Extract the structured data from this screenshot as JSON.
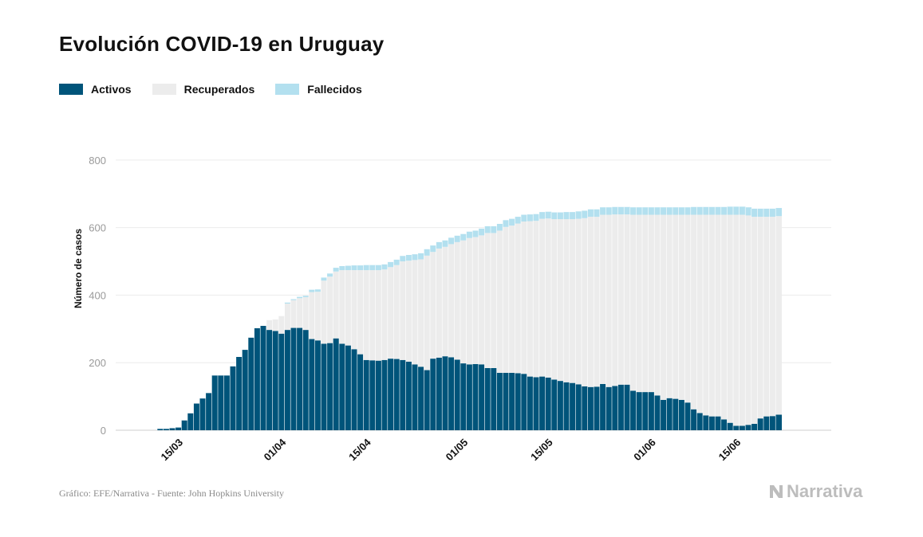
{
  "chart_data": {
    "type": "bar",
    "stacked": true,
    "title": "Evolución COVID-19 en Uruguay",
    "ylabel": "Número de casos",
    "xlabel": "",
    "ylim": [
      0,
      920
    ],
    "yticks": [
      0,
      200,
      400,
      600,
      800
    ],
    "grid": true,
    "legend_position": "top-left",
    "x_start": "2020-03-13",
    "x_tick_labels": [
      {
        "label": "15/03",
        "date": "2020-03-15"
      },
      {
        "label": "01/04",
        "date": "2020-04-01"
      },
      {
        "label": "15/04",
        "date": "2020-04-15"
      },
      {
        "label": "01/05",
        "date": "2020-05-01"
      },
      {
        "label": "15/05",
        "date": "2020-05-15"
      },
      {
        "label": "01/06",
        "date": "2020-06-01"
      },
      {
        "label": "15/06",
        "date": "2020-06-15"
      }
    ],
    "series": [
      {
        "name": "Activos",
        "color": "#00547a",
        "values": [
          4,
          4,
          6,
          8,
          29,
          50,
          79,
          94,
          110,
          162,
          162,
          162,
          189,
          217,
          238,
          274,
          302,
          309,
          297,
          294,
          286,
          297,
          303,
          303,
          297,
          270,
          266,
          256,
          258,
          272,
          256,
          251,
          240,
          225,
          208,
          207,
          206,
          208,
          212,
          211,
          208,
          203,
          195,
          188,
          178,
          212,
          215,
          219,
          216,
          209,
          198,
          195,
          196,
          195,
          184,
          184,
          170,
          170,
          170,
          169,
          167,
          159,
          157,
          159,
          156,
          150,
          146,
          142,
          140,
          136,
          130,
          128,
          129,
          137,
          128,
          131,
          135,
          135,
          117,
          113,
          113,
          113,
          103,
          90,
          95,
          93,
          90,
          82,
          62,
          51,
          44,
          41,
          41,
          32,
          22,
          13,
          13,
          16,
          19,
          35,
          41,
          42,
          46
        ]
      },
      {
        "name": "Recuperados",
        "color": "#ececec",
        "values": [
          0,
          0,
          0,
          0,
          0,
          0,
          0,
          0,
          0,
          0,
          0,
          0,
          0,
          0,
          0,
          0,
          0,
          0,
          29,
          34,
          52,
          78,
          82,
          88,
          97,
          139,
          144,
          187,
          197,
          198,
          218,
          223,
          234,
          249,
          266,
          267,
          268,
          268,
          271,
          278,
          292,
          299,
          309,
          318,
          339,
          316,
          323,
          324,
          335,
          348,
          364,
          374,
          376,
          382,
          400,
          400,
          421,
          432,
          436,
          443,
          451,
          460,
          463,
          467,
          471,
          475,
          479,
          483,
          485,
          490,
          498,
          504,
          503,
          501,
          510,
          508,
          504,
          504,
          521,
          525,
          525,
          525,
          535,
          548,
          543,
          545,
          548,
          556,
          576,
          587,
          594,
          597,
          597,
          606,
          616,
          625,
          625,
          620,
          613,
          597,
          591,
          590,
          588
        ]
      },
      {
        "name": "Fallecidos",
        "color": "#b3e0ef",
        "values": [
          0,
          0,
          0,
          0,
          0,
          0,
          0,
          0,
          0,
          0,
          0,
          0,
          0,
          0,
          0,
          0,
          0,
          0,
          0,
          0,
          0,
          3,
          3,
          4,
          4,
          7,
          7,
          9,
          9,
          11,
          12,
          13,
          14,
          14,
          15,
          15,
          15,
          15,
          15,
          16,
          16,
          17,
          17,
          18,
          19,
          19,
          19,
          19,
          19,
          19,
          19,
          19,
          19,
          20,
          20,
          20,
          20,
          20,
          20,
          20,
          20,
          20,
          20,
          20,
          20,
          20,
          20,
          21,
          21,
          22,
          22,
          22,
          22,
          22,
          22,
          22,
          22,
          22,
          22,
          22,
          22,
          22,
          22,
          22,
          22,
          22,
          22,
          22,
          23,
          23,
          23,
          23,
          23,
          23,
          24,
          24,
          24,
          24,
          24,
          24,
          24,
          24,
          24
        ]
      }
    ]
  },
  "legend": {
    "items": [
      "Activos",
      "Recuperados",
      "Fallecidos"
    ]
  },
  "footer": {
    "source": "Gráfico: EFE/Narrativa - Fuente: John Hopkins University",
    "brand": "Narrativa"
  }
}
